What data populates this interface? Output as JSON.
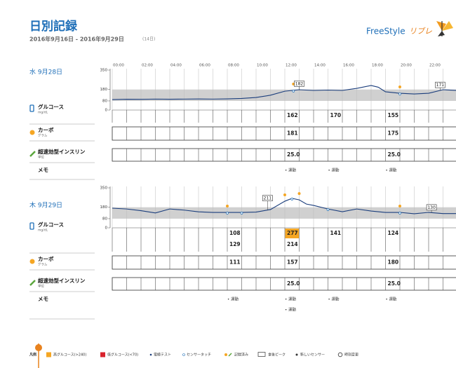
{
  "header": {
    "title": "日別記録",
    "date_range": "2016年9月16日 - 2016年9月29日",
    "days": "(14日)",
    "logo": "FreeStyle",
    "logo_sub": "リブレ"
  },
  "time_labels": [
    "00:00",
    "02:00",
    "04:00",
    "06:00",
    "08:00",
    "10:00",
    "12:00",
    "14:00",
    "16:00",
    "18:00",
    "20:00",
    "22:00"
  ],
  "row_labels": {
    "glucose": "グルコース",
    "glucose_unit": "mg/dL",
    "carbs": "カーボ",
    "carbs_unit": "グラム",
    "insulin": "超速効型インスリン",
    "insulin_unit": "単位",
    "memo": "メモ"
  },
  "days": [
    {
      "date": "水 9月28日",
      "ylim": [
        0,
        350
      ],
      "yticks": [
        350,
        180,
        80,
        0
      ],
      "target": [
        80,
        180
      ],
      "curve": {
        "x": [
          0,
          1,
          2,
          3,
          4,
          5,
          6,
          7,
          8,
          9,
          10,
          11,
          12,
          13,
          14,
          15,
          16,
          17,
          18,
          18.5,
          19,
          20,
          21,
          22,
          23,
          24
        ],
        "values": [
          92,
          95,
          94,
          96,
          95,
          96,
          97,
          96,
          98,
          102,
          110,
          130,
          165,
          178,
          172,
          175,
          172,
          190,
          215,
          200,
          160,
          147,
          141,
          147,
          178,
          172
        ]
      },
      "peaks": [
        {
          "hour": 13,
          "value": 182
        },
        {
          "hour": 22.8,
          "value": 171
        }
      ],
      "scans": [
        12.6,
        20
      ],
      "events": [
        12.6,
        20
      ],
      "glucose": [
        {
          "hour": 12,
          "values": [
            162
          ]
        },
        {
          "hour": 15,
          "values": [
            170
          ]
        },
        {
          "hour": 19,
          "values": [
            155
          ]
        }
      ],
      "carbs": [
        {
          "hour": 12,
          "value": 181
        },
        {
          "hour": 19,
          "value": 175
        }
      ],
      "insulin": [
        {
          "hour": 12,
          "value": "25.0"
        },
        {
          "hour": 19,
          "value": "25.0"
        }
      ],
      "memo": [
        {
          "hour": 12,
          "items": [
            "• 運動"
          ]
        },
        {
          "hour": 15,
          "items": [
            "• 運動"
          ]
        },
        {
          "hour": 19,
          "items": [
            "• 運動"
          ]
        }
      ]
    },
    {
      "date": "木 9月29日",
      "ylim": [
        0,
        350
      ],
      "yticks": [
        350,
        180,
        80,
        0
      ],
      "target": [
        80,
        180
      ],
      "curve": {
        "x": [
          0,
          1,
          2,
          3,
          4,
          5,
          6,
          7,
          8,
          9,
          10,
          11,
          12,
          12.5,
          13,
          13.5,
          14,
          15,
          16,
          17,
          18,
          19,
          20,
          21,
          22,
          23,
          24
        ],
        "values": [
          172,
          165,
          150,
          130,
          165,
          155,
          140,
          135,
          135,
          135,
          138,
          160,
          233,
          258,
          245,
          208,
          196,
          165,
          141,
          165,
          147,
          135,
          135,
          123,
          135,
          125,
          125
        ]
      },
      "peaks": [
        {
          "hour": 10.8,
          "value": 211
        },
        {
          "hour": 22.2,
          "value": 130
        }
      ],
      "scans": [
        8,
        9,
        12.5,
        15,
        20
      ],
      "events": [
        8,
        12,
        13,
        20
      ],
      "glucose": [
        {
          "hour": 8,
          "values": [
            108,
            129
          ]
        },
        {
          "hour": 12,
          "values": [
            277,
            214
          ],
          "high": 0
        },
        {
          "hour": 15,
          "values": [
            141
          ]
        },
        {
          "hour": 19,
          "values": [
            124
          ]
        }
      ],
      "carbs": [
        {
          "hour": 8,
          "value": 111
        },
        {
          "hour": 12,
          "value": 157
        },
        {
          "hour": 19,
          "value": 180
        }
      ],
      "insulin": [
        {
          "hour": 12,
          "value": "25.0"
        },
        {
          "hour": 19,
          "value": "25.0"
        }
      ],
      "memo": [
        {
          "hour": 8,
          "items": [
            "• 運動"
          ]
        },
        {
          "hour": 12,
          "items": [
            "• 運動",
            "• 運動"
          ]
        },
        {
          "hour": 15,
          "items": [
            "• 運動"
          ]
        },
        {
          "hour": 19,
          "items": [
            "• 運動"
          ]
        }
      ]
    }
  ],
  "legend": {
    "title": "凡例",
    "high": "高グルコース(>240)",
    "low": "低グルコース(<70)",
    "strip": "電極テスト",
    "touch": "センサータッチ",
    "logged": "記録済み",
    "peak": "食後ピーク",
    "new_sensor": "新しいセンサー",
    "time_change": "時刻変更"
  }
}
